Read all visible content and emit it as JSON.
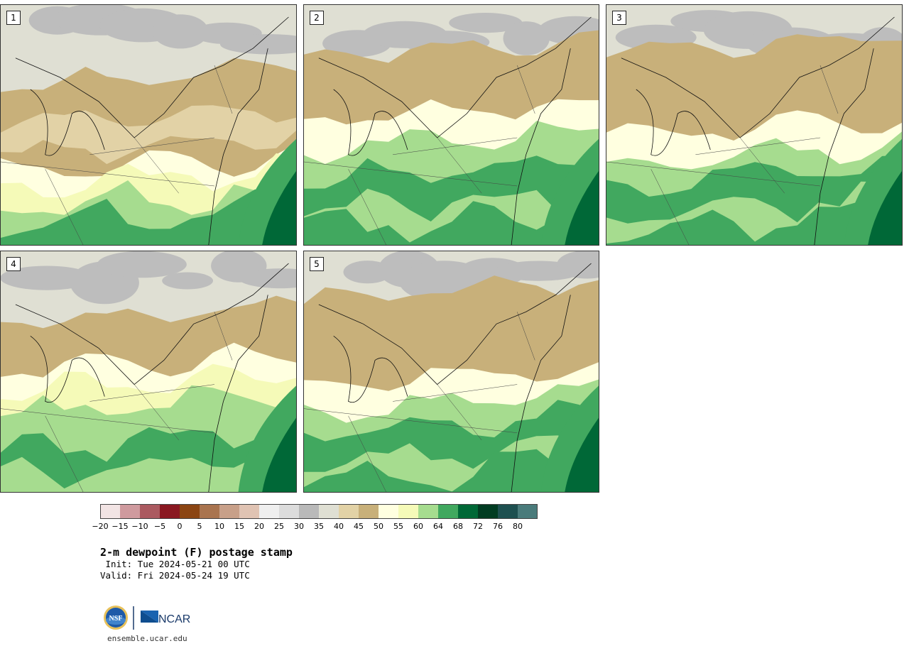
{
  "panels": [
    {
      "member": "1",
      "type": "dry"
    },
    {
      "member": "2",
      "type": "humid"
    },
    {
      "member": "3",
      "type": "mixed"
    },
    {
      "member": "4",
      "type": "moist"
    },
    {
      "member": "5",
      "type": "mixed"
    }
  ],
  "colorbar": {
    "colors": [
      "#f2e4e4",
      "#cf9a9e",
      "#ab5a60",
      "#8a1821",
      "#8b4513",
      "#a9744f",
      "#c8a089",
      "#e0c3b3",
      "#efefef",
      "#dcdcdc",
      "#b9b9b9",
      "#dfdfd3",
      "#e2d2a6",
      "#c8b07a",
      "#ffffe0",
      "#f5fab8",
      "#a6dc8f",
      "#41a85f",
      "#006837",
      "#013c22",
      "#1e5050",
      "#4a7b7b"
    ],
    "ticks": [
      "−20",
      "−15",
      "−10",
      "−5",
      "0",
      "5",
      "10",
      "15",
      "20",
      "25",
      "30",
      "35",
      "40",
      "45",
      "50",
      "55",
      "60",
      "64",
      "68",
      "72",
      "76",
      "80"
    ]
  },
  "title": "2-m dewpoint (F) postage stamp",
  "init": " Init: Tue 2024-05-21 00 UTC",
  "valid": "Valid: Fri 2024-05-24 19 UTC",
  "logos": {
    "nsf_text": "NSF",
    "ncar_text": "NCAR"
  },
  "site": "ensemble.ucar.edu"
}
